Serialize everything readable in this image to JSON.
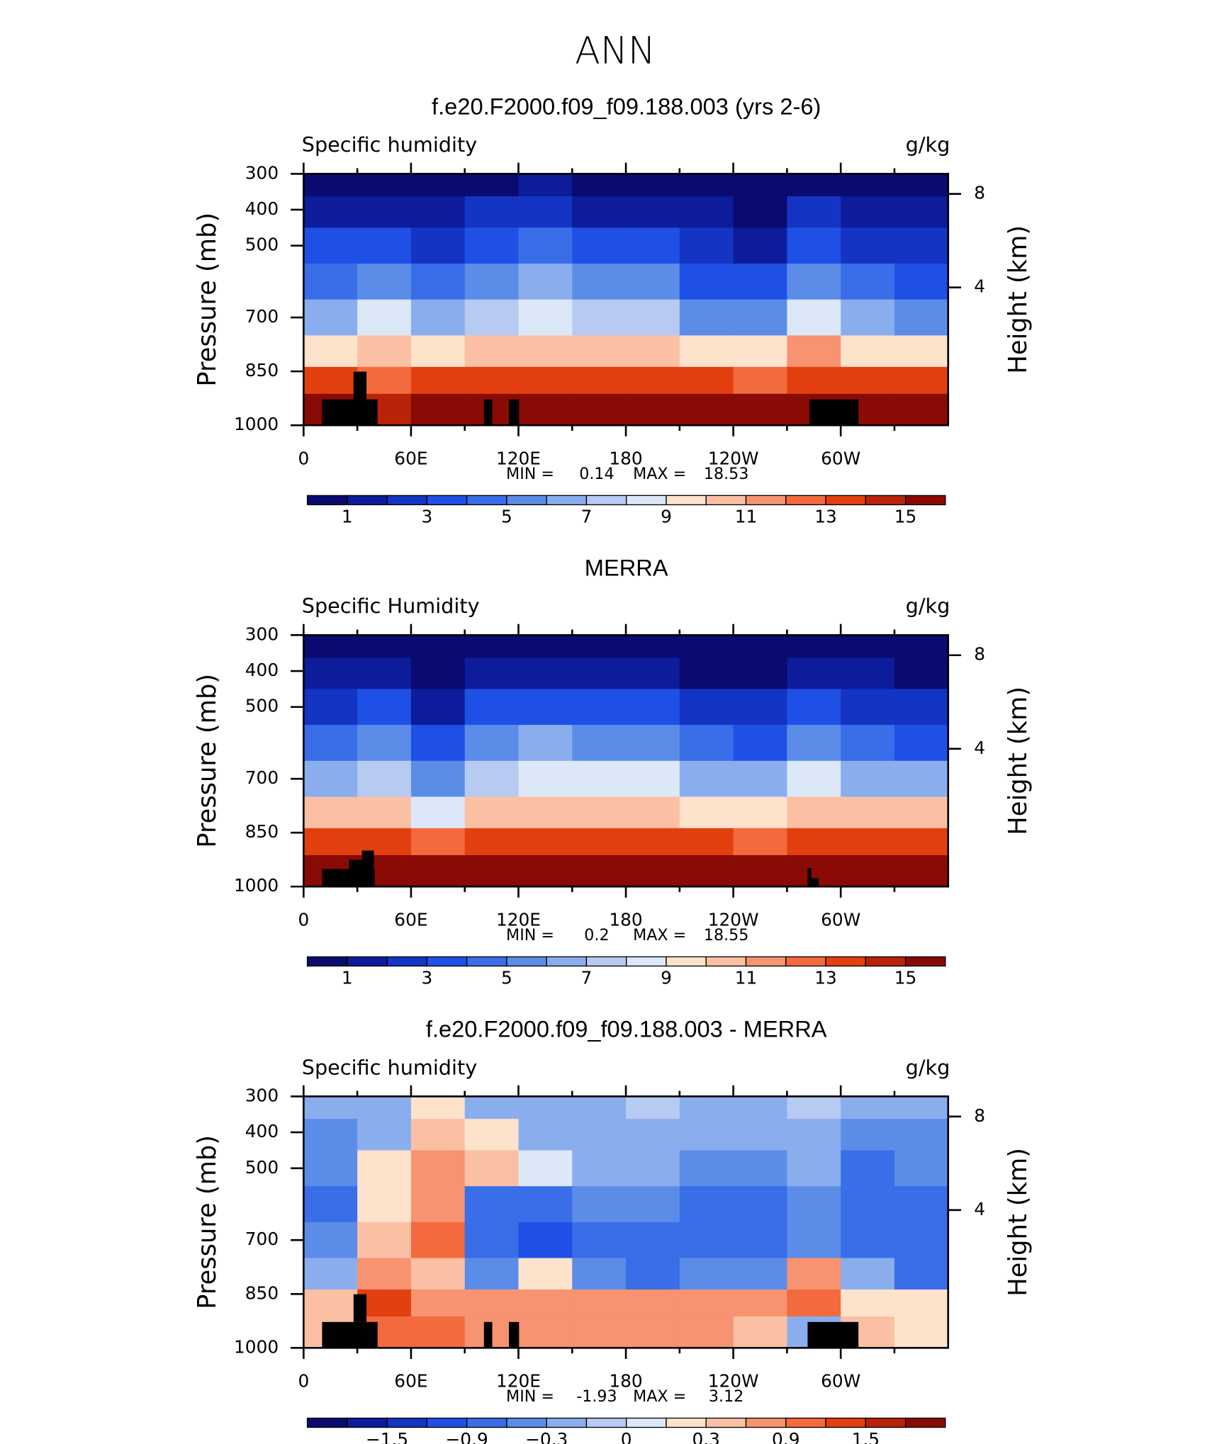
{
  "title": "ANN",
  "chart_data": [
    {
      "type": "contour",
      "title": "f.e20.F2000.f09_f09.188.003 (yrs 2-6)",
      "subtitle": "Specific humidity",
      "unit": "g/kg",
      "ylabel": "Pressure (mb)",
      "y2label": "Height (km)",
      "y2_scale": "standard-atmosphere",
      "xlim": [
        0,
        360
      ],
      "xticks": [
        0,
        {
          "value": 60,
          "label": "60E"
        },
        {
          "value": 120,
          "label": "120E"
        },
        180,
        {
          "value": 240,
          "label": "120W"
        },
        {
          "value": 300,
          "label": "60W"
        }
      ],
      "ylim": [
        1000,
        300
      ],
      "yticks": [
        300,
        400,
        500,
        700,
        850,
        1000
      ],
      "y2ticks": [
        4,
        8
      ],
      "min_label": "MIN =",
      "min": 0.14,
      "max_label": "MAX =",
      "max": 18.53,
      "x": [
        15,
        45,
        75,
        105,
        135,
        165,
        195,
        225,
        255,
        285,
        315,
        345
      ],
      "y": [
        325,
        400,
        500,
        600,
        700,
        800,
        875,
        950
      ],
      "z": [
        [
          0.6,
          0.8,
          0.6,
          0.9,
          1.0,
          0.8,
          0.6,
          0.4,
          0.3,
          0.9,
          0.5,
          0.4
        ],
        [
          1.5,
          1.9,
          1.4,
          2.0,
          2.2,
          1.9,
          1.5,
          1.0,
          0.8,
          2.0,
          1.4,
          1.1
        ],
        [
          3.0,
          3.6,
          2.8,
          3.8,
          4.1,
          3.7,
          3.1,
          2.2,
          1.8,
          3.8,
          2.8,
          2.4
        ],
        [
          4.6,
          5.6,
          4.5,
          5.6,
          6.0,
          5.6,
          5.0,
          3.8,
          3.2,
          5.8,
          4.4,
          3.9
        ],
        [
          6.6,
          8.0,
          6.6,
          7.8,
          8.2,
          7.8,
          7.2,
          5.8,
          5.2,
          8.2,
          6.5,
          5.9
        ],
        [
          9.8,
          10.8,
          9.5,
          10.4,
          10.8,
          10.5,
          10.2,
          9.4,
          9.0,
          11.0,
          9.8,
          9.3
        ],
        [
          13.0,
          12.5,
          13.2,
          13.6,
          13.8,
          13.6,
          13.4,
          13.0,
          12.6,
          13.8,
          13.4,
          13.0
        ],
        [
          16.5,
          14.8,
          17.2,
          17.8,
          17.5,
          17.6,
          17.5,
          17.0,
          16.0,
          16.8,
          17.4,
          16.6
        ]
      ],
      "levels": [
        1,
        2,
        3,
        4,
        5,
        6,
        7,
        8,
        9,
        10,
        11,
        12,
        13,
        14,
        15
      ],
      "colorbar_ticks": [
        1,
        3,
        5,
        7,
        9,
        11,
        13,
        15
      ],
      "colors": [
        "#0a0a70",
        "#0c1c9a",
        "#1434c4",
        "#1f50e6",
        "#3a6de8",
        "#5b8de8",
        "#8aadee",
        "#b6caf2",
        "#dce8f8",
        "#fde2cc",
        "#fbc0a4",
        "#f79370",
        "#f36a3e",
        "#e2400f",
        "#b92408",
        "#8a0a05"
      ]
    },
    {
      "type": "contour",
      "title": "MERRA",
      "subtitle": "Specific Humidity",
      "unit": "g/kg",
      "ylabel": "Pressure (mb)",
      "y2label": "Height (km)",
      "y2_scale": "standard-atmosphere",
      "xlim": [
        0,
        360
      ],
      "xticks": [
        0,
        {
          "value": 60,
          "label": "60E"
        },
        {
          "value": 120,
          "label": "120E"
        },
        180,
        {
          "value": 240,
          "label": "120W"
        },
        {
          "value": 300,
          "label": "60W"
        }
      ],
      "ylim": [
        1000,
        300
      ],
      "yticks": [
        300,
        400,
        500,
        700,
        850,
        1000
      ],
      "y2ticks": [
        4,
        8
      ],
      "min_label": "MIN =",
      "min": 0.2,
      "max_label": "MAX =",
      "max": 18.55,
      "x": [
        15,
        45,
        75,
        105,
        135,
        165,
        195,
        225,
        255,
        285,
        315,
        345
      ],
      "y": [
        325,
        400,
        500,
        600,
        700,
        800,
        875,
        950
      ],
      "z": [
        [
          0.4,
          0.6,
          0.3,
          0.5,
          0.6,
          0.5,
          0.4,
          0.3,
          0.3,
          0.6,
          0.4,
          0.3
        ],
        [
          1.2,
          1.6,
          0.8,
          1.6,
          1.8,
          1.6,
          1.3,
          0.9,
          0.8,
          1.7,
          1.1,
          0.9
        ],
        [
          2.6,
          3.2,
          1.8,
          3.4,
          3.8,
          3.5,
          3.0,
          2.2,
          2.0,
          3.5,
          2.5,
          2.1
        ],
        [
          4.3,
          5.2,
          3.2,
          5.4,
          6.0,
          5.8,
          5.2,
          4.2,
          3.8,
          5.6,
          4.2,
          3.8
        ],
        [
          6.8,
          7.6,
          5.0,
          7.8,
          8.6,
          8.4,
          8.0,
          6.6,
          6.0,
          8.2,
          6.8,
          6.4
        ],
        [
          10.2,
          10.6,
          8.6,
          10.4,
          10.8,
          10.8,
          10.6,
          9.8,
          9.4,
          10.8,
          10.2,
          10.0
        ],
        [
          13.2,
          13.0,
          12.6,
          13.4,
          13.8,
          13.6,
          13.4,
          13.0,
          12.8,
          13.6,
          13.4,
          13.2
        ],
        [
          15.8,
          15.6,
          16.6,
          17.6,
          17.4,
          17.6,
          17.6,
          17.2,
          16.4,
          16.8,
          17.2,
          16.8
        ]
      ],
      "levels": [
        1,
        2,
        3,
        4,
        5,
        6,
        7,
        8,
        9,
        10,
        11,
        12,
        13,
        14,
        15
      ],
      "colorbar_ticks": [
        1,
        3,
        5,
        7,
        9,
        11,
        13,
        15
      ],
      "colors": [
        "#0a0a70",
        "#0c1c9a",
        "#1434c4",
        "#1f50e6",
        "#3a6de8",
        "#5b8de8",
        "#8aadee",
        "#b6caf2",
        "#dce8f8",
        "#fde2cc",
        "#fbc0a4",
        "#f79370",
        "#f36a3e",
        "#e2400f",
        "#b92408",
        "#8a0a05"
      ]
    },
    {
      "type": "contour",
      "title": "f.e20.F2000.f09_f09.188.003 - MERRA",
      "subtitle": "Specific humidity",
      "unit": "g/kg",
      "ylabel": "Pressure (mb)",
      "y2label": "Height (km)",
      "y2_scale": "standard-atmosphere",
      "xlim": [
        0,
        360
      ],
      "xticks": [
        0,
        {
          "value": 60,
          "label": "60E"
        },
        {
          "value": 120,
          "label": "120E"
        },
        180,
        {
          "value": 240,
          "label": "120W"
        },
        {
          "value": 300,
          "label": "60W"
        }
      ],
      "ylim": [
        1000,
        300
      ],
      "yticks": [
        300,
        400,
        500,
        700,
        850,
        1000
      ],
      "y2ticks": [
        4,
        8
      ],
      "min_label": "MIN =",
      "min": -1.93,
      "max_label": "MAX =",
      "max": 3.12,
      "x": [
        15,
        45,
        75,
        105,
        135,
        165,
        195,
        225,
        255,
        285,
        315,
        345
      ],
      "y": [
        325,
        400,
        500,
        600,
        700,
        800,
        875,
        950
      ],
      "z": [
        [
          -0.2,
          -0.3,
          0.1,
          -0.2,
          -0.2,
          -0.2,
          -0.1,
          -0.2,
          -0.2,
          -0.1,
          -0.3,
          -0.2
        ],
        [
          -0.4,
          -0.2,
          0.4,
          0.2,
          -0.2,
          -0.3,
          -0.2,
          -0.3,
          -0.3,
          -0.2,
          -0.5,
          -0.4
        ],
        [
          -0.6,
          0.1,
          0.6,
          0.3,
          0.05,
          -0.2,
          -0.3,
          -0.4,
          -0.4,
          -0.3,
          -0.7,
          -0.6
        ],
        [
          -0.8,
          0.2,
          0.7,
          -0.7,
          -0.8,
          -0.6,
          -0.6,
          -0.7,
          -0.8,
          -0.5,
          -0.8,
          -0.9
        ],
        [
          -0.5,
          0.4,
          0.9,
          -0.9,
          -1.0,
          -0.8,
          -0.9,
          -0.8,
          -0.9,
          -0.6,
          -0.7,
          -0.9
        ],
        [
          -0.3,
          0.6,
          0.5,
          -0.5,
          0.2,
          -0.6,
          -0.7,
          -0.6,
          -0.5,
          0.8,
          -0.2,
          -0.8
        ],
        [
          0.3,
          1.2,
          0.8,
          0.6,
          0.6,
          0.7,
          0.8,
          0.8,
          0.6,
          0.9,
          0.1,
          0.2
        ],
        [
          0.5,
          0.9,
          0.9,
          0.8,
          0.6,
          0.6,
          0.8,
          0.8,
          0.5,
          -0.3,
          0.3,
          0.2
        ]
      ],
      "levels": [
        -1.8,
        -1.5,
        -1.2,
        -0.9,
        -0.6,
        -0.3,
        -0.1,
        0,
        0.1,
        0.3,
        0.6,
        0.9,
        1.2,
        1.5,
        1.8
      ],
      "colorbar_ticks": [
        {
          "value": -1.5,
          "label": "−1.5"
        },
        {
          "value": -0.9,
          "label": "−0.9"
        },
        {
          "value": -0.3,
          "label": "−0.3"
        },
        0,
        0.3,
        0.9,
        1.5
      ],
      "colors": [
        "#0a0a70",
        "#0c1c9a",
        "#1434c4",
        "#1f50e6",
        "#3a6de8",
        "#5b8de8",
        "#8aadee",
        "#b6caf2",
        "#dce8f8",
        "#fde2cc",
        "#fbc0a4",
        "#f79370",
        "#f36a3e",
        "#e2400f",
        "#b92408",
        "#8a0a05"
      ]
    }
  ]
}
